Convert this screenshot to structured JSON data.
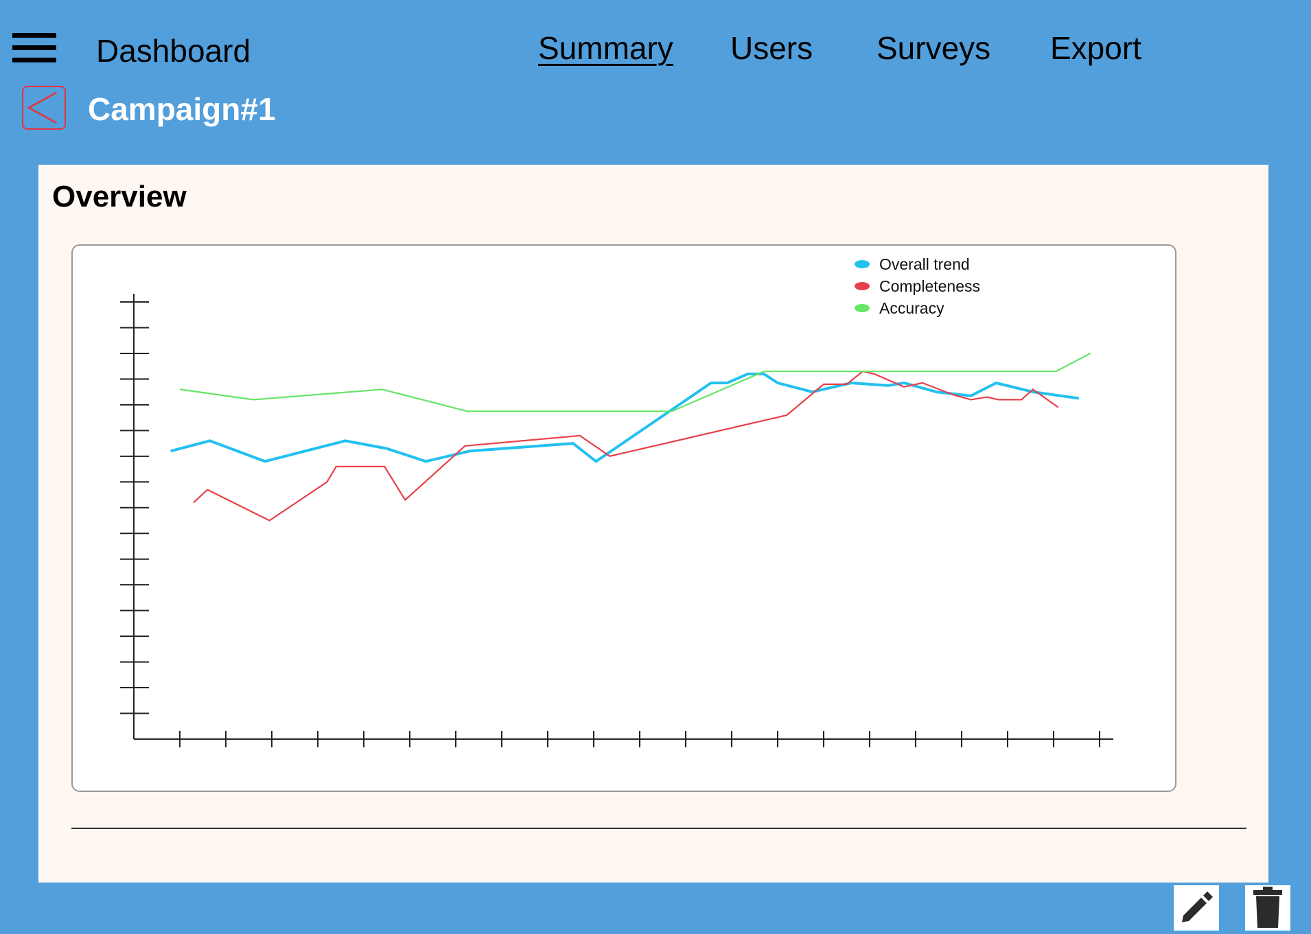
{
  "header": {
    "app_title": "Dashboard",
    "nav": [
      {
        "label": "Summary",
        "active": true
      },
      {
        "label": "Users",
        "active": false
      },
      {
        "label": "Surveys",
        "active": false
      },
      {
        "label": "Export",
        "active": false
      }
    ]
  },
  "subheader": {
    "campaign_title": "Campaign#1",
    "back_icon": "chevron-left-icon"
  },
  "panel": {
    "title": "Overview"
  },
  "actions": {
    "edit_icon": "pencil-icon",
    "delete_icon": "trash-icon"
  },
  "colors": {
    "background": "#529fdc",
    "panel": "#fff7f1",
    "overall": "#23c1ee",
    "completeness": "#e8404a",
    "accuracy": "#66e466"
  },
  "chart_data": {
    "type": "line",
    "title": "",
    "xlabel": "",
    "ylabel": "",
    "x_ticks": 21,
    "y_ticks": 17,
    "xlim": [
      0,
      21
    ],
    "ylim": [
      0,
      17
    ],
    "legend_position": "top-right",
    "series": [
      {
        "name": "Overall trend",
        "color": "#23c1ee",
        "points": [
          [
            0.8,
            11.2
          ],
          [
            1.65,
            11.6
          ],
          [
            2.85,
            10.8
          ],
          [
            4.6,
            11.6
          ],
          [
            5.5,
            11.3
          ],
          [
            6.35,
            10.8
          ],
          [
            7.3,
            11.2
          ],
          [
            9.55,
            11.5
          ],
          [
            10.05,
            10.8
          ],
          [
            12.55,
            13.85
          ],
          [
            12.9,
            13.85
          ],
          [
            13.35,
            14.2
          ],
          [
            13.7,
            14.2
          ],
          [
            14.0,
            13.85
          ],
          [
            14.75,
            13.5
          ],
          [
            15.6,
            13.85
          ],
          [
            16.4,
            13.75
          ],
          [
            16.75,
            13.85
          ],
          [
            17.45,
            13.5
          ],
          [
            18.2,
            13.35
          ],
          [
            18.75,
            13.85
          ],
          [
            19.55,
            13.5
          ],
          [
            20.55,
            13.25
          ]
        ]
      },
      {
        "name": "Completeness",
        "color": "#e8404a",
        "points": [
          [
            1.3,
            9.2
          ],
          [
            1.6,
            9.7
          ],
          [
            2.95,
            8.5
          ],
          [
            4.2,
            10.0
          ],
          [
            4.4,
            10.6
          ],
          [
            5.45,
            10.6
          ],
          [
            5.9,
            9.3
          ],
          [
            7.2,
            11.4
          ],
          [
            9.7,
            11.8
          ],
          [
            10.35,
            11.0
          ],
          [
            14.2,
            12.6
          ],
          [
            15.0,
            13.8
          ],
          [
            15.5,
            13.8
          ],
          [
            15.85,
            14.3
          ],
          [
            16.1,
            14.2
          ],
          [
            16.75,
            13.7
          ],
          [
            17.15,
            13.85
          ],
          [
            17.8,
            13.4
          ],
          [
            18.2,
            13.2
          ],
          [
            18.55,
            13.3
          ],
          [
            18.8,
            13.2
          ],
          [
            19.3,
            13.2
          ],
          [
            19.55,
            13.6
          ],
          [
            20.1,
            12.9
          ]
        ]
      },
      {
        "name": "Accuracy",
        "color": "#66e466",
        "points": [
          [
            1.0,
            13.6
          ],
          [
            2.6,
            13.2
          ],
          [
            5.4,
            13.6
          ],
          [
            7.25,
            12.75
          ],
          [
            11.7,
            12.75
          ],
          [
            13.7,
            14.3
          ],
          [
            20.05,
            14.3
          ],
          [
            20.8,
            15.0
          ]
        ]
      }
    ]
  }
}
